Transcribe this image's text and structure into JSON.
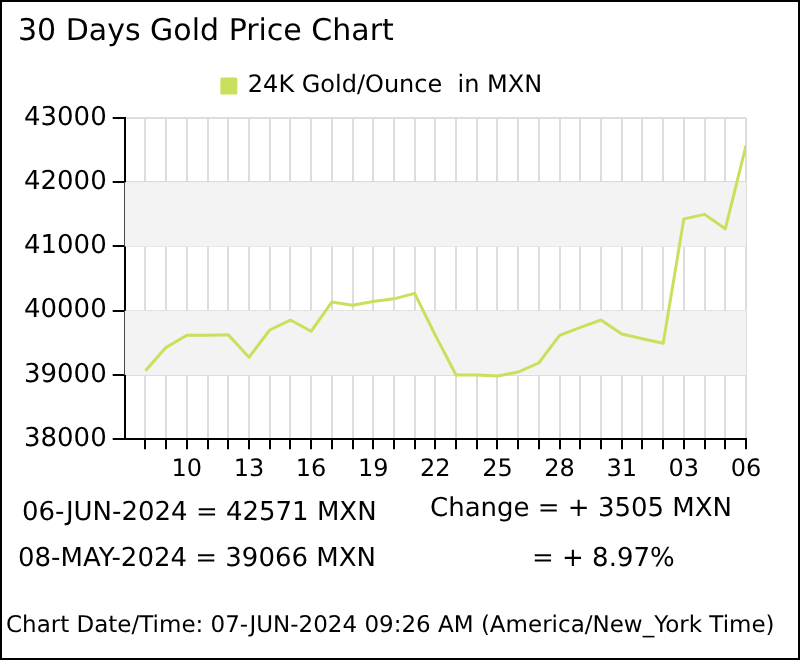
{
  "chart_data": {
    "type": "line",
    "title": "30 Days Gold Price Chart",
    "x": [
      "2024-05-08",
      "2024-05-09",
      "2024-05-10",
      "2024-05-11",
      "2024-05-12",
      "2024-05-13",
      "2024-05-14",
      "2024-05-15",
      "2024-05-16",
      "2024-05-17",
      "2024-05-18",
      "2024-05-19",
      "2024-05-20",
      "2024-05-21",
      "2024-05-22",
      "2024-05-23",
      "2024-05-24",
      "2024-05-25",
      "2024-05-26",
      "2024-05-27",
      "2024-05-28",
      "2024-05-29",
      "2024-05-30",
      "2024-05-31",
      "2024-06-01",
      "2024-06-02",
      "2024-06-03",
      "2024-06-04",
      "2024-06-05",
      "2024-06-06"
    ],
    "series": [
      {
        "name": "24K Gold/Ounce  in MXN",
        "color": "#c8e05c",
        "values": [
          39066,
          39430,
          39617,
          39617,
          39627,
          39275,
          39700,
          39855,
          39680,
          40135,
          40085,
          40145,
          40185,
          40270,
          39617,
          39000,
          39000,
          38983,
          39045,
          39190,
          39617,
          39742,
          39855,
          39637,
          39565,
          39493,
          41430,
          41500,
          41275,
          42571
        ]
      }
    ],
    "xlim": [
      "2024-05-07",
      "2024-06-06"
    ],
    "xticks": [
      {
        "value": "2024-05-08",
        "label": null
      },
      {
        "value": "2024-05-09",
        "label": null
      },
      {
        "value": "2024-05-10",
        "label": "10"
      },
      {
        "value": "2024-05-11",
        "label": null
      },
      {
        "value": "2024-05-12",
        "label": null
      },
      {
        "value": "2024-05-13",
        "label": "13"
      },
      {
        "value": "2024-05-14",
        "label": null
      },
      {
        "value": "2024-05-15",
        "label": null
      },
      {
        "value": "2024-05-16",
        "label": "16"
      },
      {
        "value": "2024-05-17",
        "label": null
      },
      {
        "value": "2024-05-18",
        "label": null
      },
      {
        "value": "2024-05-19",
        "label": "19"
      },
      {
        "value": "2024-05-20",
        "label": null
      },
      {
        "value": "2024-05-21",
        "label": null
      },
      {
        "value": "2024-05-22",
        "label": "22"
      },
      {
        "value": "2024-05-23",
        "label": null
      },
      {
        "value": "2024-05-24",
        "label": null
      },
      {
        "value": "2024-05-25",
        "label": "25"
      },
      {
        "value": "2024-05-26",
        "label": null
      },
      {
        "value": "2024-05-27",
        "label": null
      },
      {
        "value": "2024-05-28",
        "label": "28"
      },
      {
        "value": "2024-05-29",
        "label": null
      },
      {
        "value": "2024-05-30",
        "label": null
      },
      {
        "value": "2024-05-31",
        "label": "31"
      },
      {
        "value": "2024-06-01",
        "label": null
      },
      {
        "value": "2024-06-02",
        "label": null
      },
      {
        "value": "2024-06-03",
        "label": "03"
      },
      {
        "value": "2024-06-04",
        "label": null
      },
      {
        "value": "2024-06-05",
        "label": null
      },
      {
        "value": "2024-06-06",
        "label": "06"
      }
    ],
    "ylim": [
      38000,
      43000
    ],
    "yticks": [
      38000,
      39000,
      40000,
      41000,
      42000,
      43000
    ],
    "grid": true,
    "legend": "top",
    "marker": "none",
    "line_style": "solid",
    "annotations": [
      "06-JUN-2024 = 42571 MXN",
      "08-MAY-2024 = 39066 MXN",
      "Change   = + 3505 MXN",
      "= + 8.97%",
      "Chart Date/Time: 07-JUN-2024 09:26 AM (America/New_York Time)"
    ]
  }
}
